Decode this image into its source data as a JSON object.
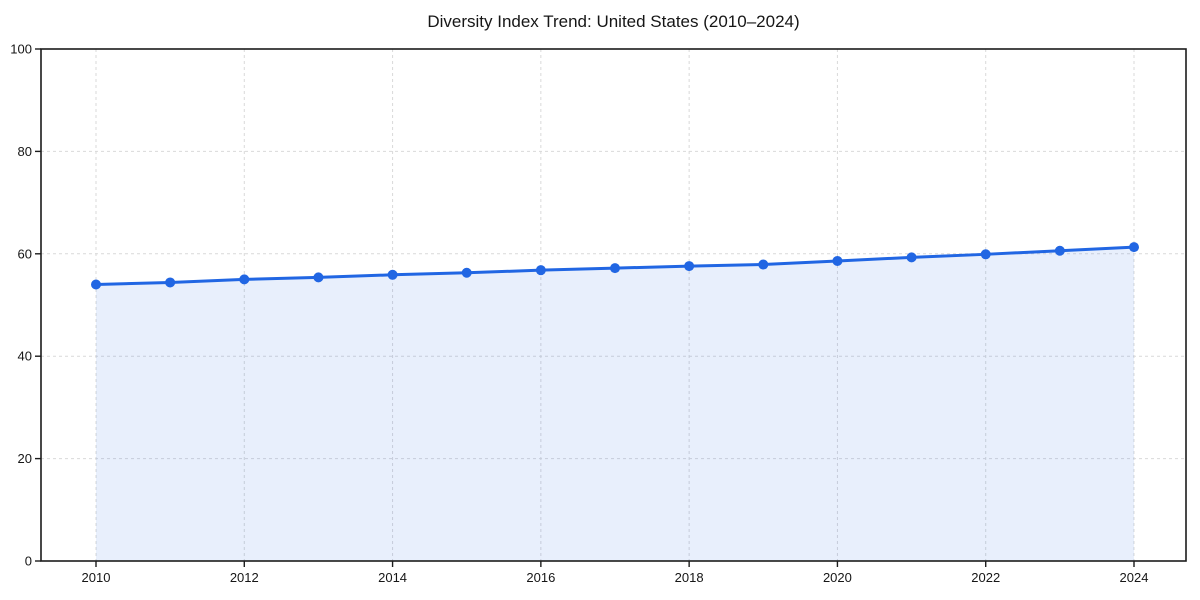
{
  "chart_data": {
    "type": "line",
    "title": "Diversity Index Trend: United States (2010–2024)",
    "xlabel": "",
    "ylabel": "",
    "x": [
      2010,
      2011,
      2012,
      2013,
      2014,
      2015,
      2016,
      2017,
      2018,
      2019,
      2020,
      2021,
      2022,
      2023,
      2024
    ],
    "values": [
      54.0,
      54.4,
      55.0,
      55.4,
      55.9,
      56.3,
      56.8,
      57.2,
      57.6,
      57.9,
      58.6,
      59.3,
      59.9,
      60.6,
      61.3
    ],
    "xticks": [
      2010,
      2012,
      2014,
      2016,
      2018,
      2020,
      2022,
      2024
    ],
    "yticks": [
      0,
      20,
      40,
      60,
      80,
      100
    ],
    "ylim": [
      0,
      100
    ],
    "grid": "dashed-both-axes",
    "legend": "none",
    "area_fill": true,
    "marker": "circle",
    "colors": {
      "line": "#2166e3",
      "area_fill": "rgba(33,102,227,0.10)",
      "grid": "#d9d9d9",
      "axis": "#1c1c1c",
      "text": "#161616",
      "background": "#ffffff"
    }
  }
}
